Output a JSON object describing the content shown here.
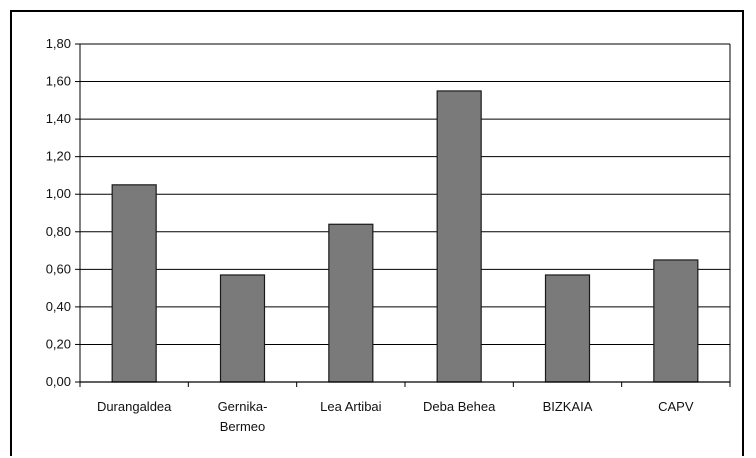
{
  "chart_data": {
    "type": "bar",
    "categories": [
      "Durangaldea",
      "Gernika-Bermeo",
      "Lea Artibai",
      "Deba Behea",
      "BIZKAIA",
      "CAPV"
    ],
    "category_lines": [
      [
        "Durangaldea"
      ],
      [
        "Gernika-",
        "Bermeo"
      ],
      [
        "Lea Artibai"
      ],
      [
        "Deba Behea"
      ],
      [
        "BIZKAIA"
      ],
      [
        "CAPV"
      ]
    ],
    "values": [
      1.05,
      0.57,
      0.84,
      1.55,
      0.57,
      0.65
    ],
    "ylim": [
      0,
      1.8
    ],
    "yticks": [
      "0,00",
      "0,20",
      "0,40",
      "0,60",
      "0,80",
      "1,00",
      "1,20",
      "1,40",
      "1,60",
      "1,80"
    ],
    "grid": true,
    "legend": "none",
    "bar_color": "#7a7a7a",
    "bar_edge_color": "#1a1a1a",
    "grid_color": "#000000"
  }
}
